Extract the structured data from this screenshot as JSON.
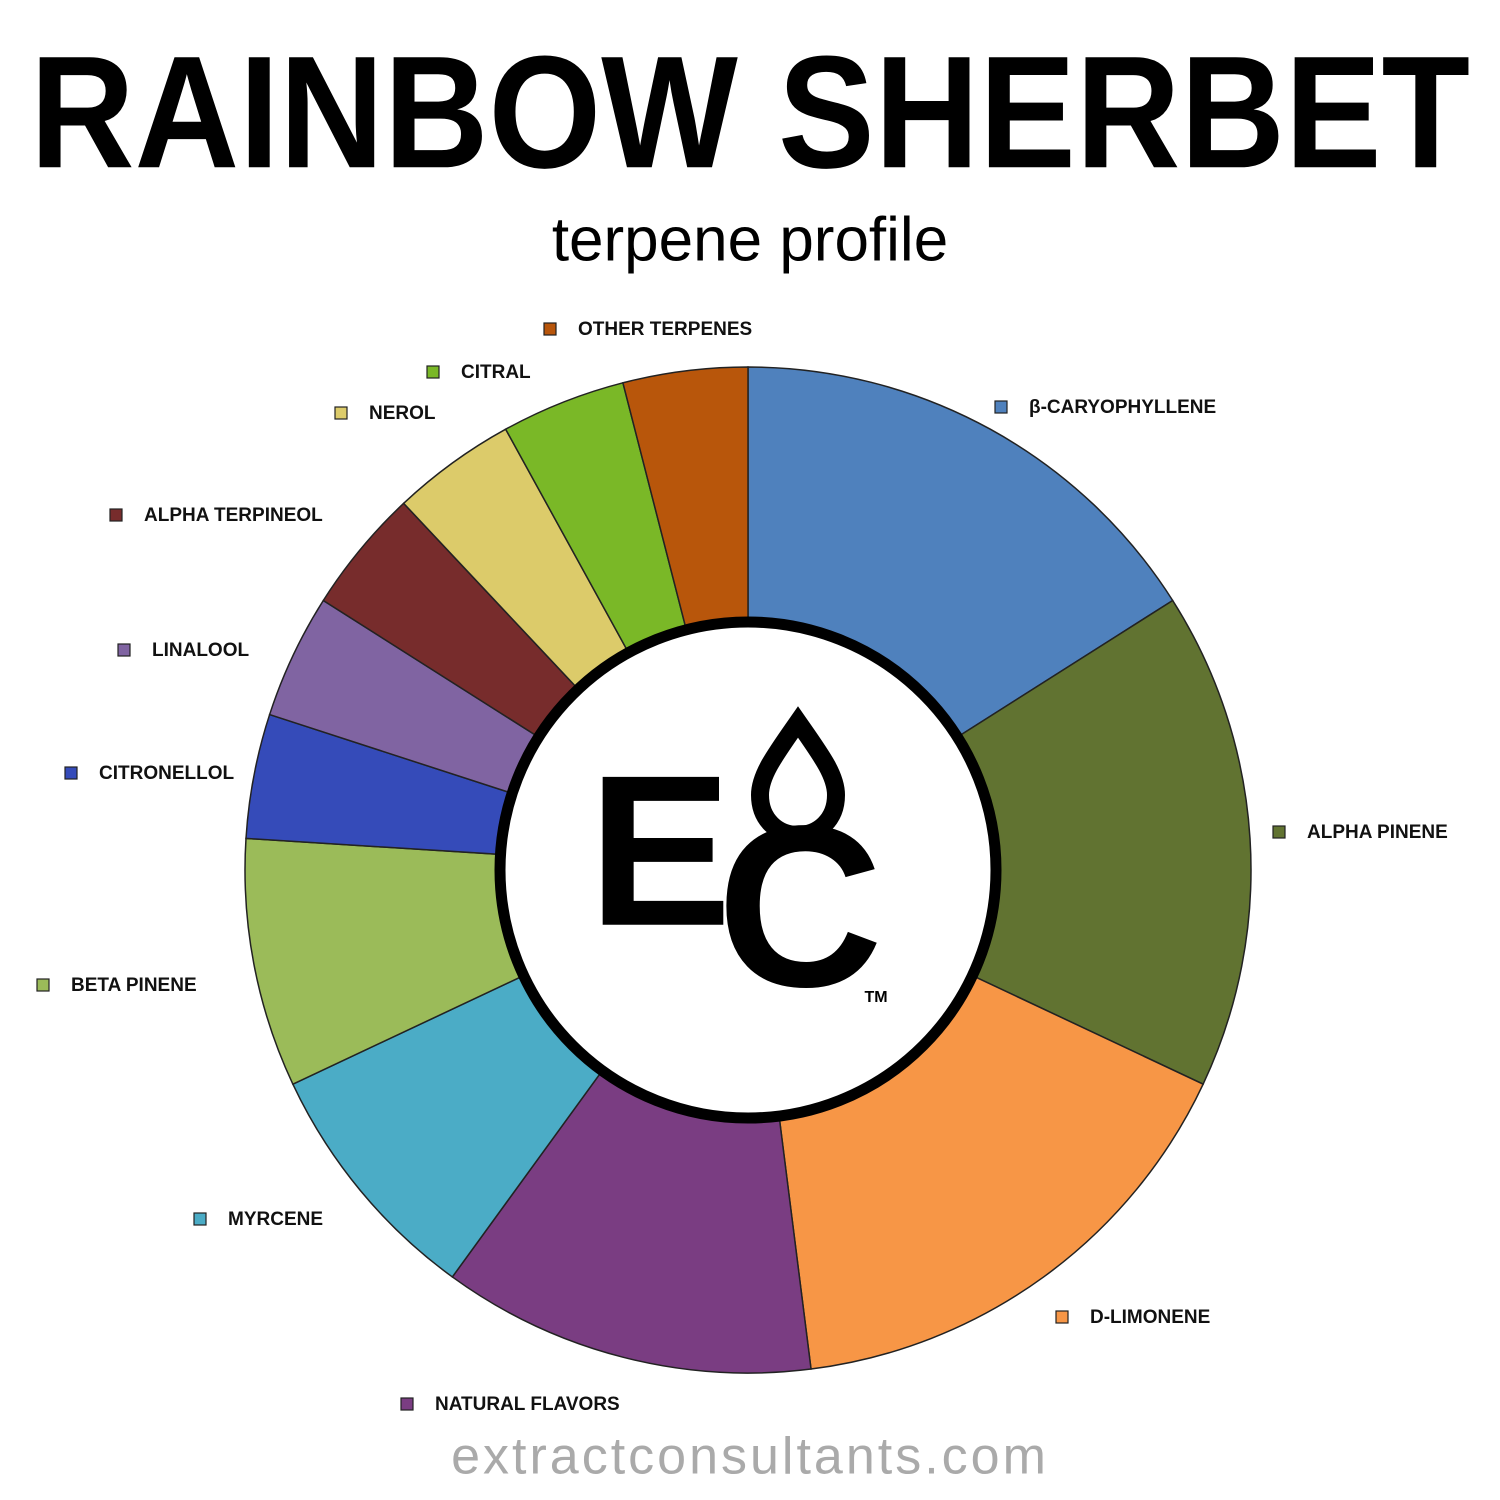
{
  "chart_data": {
    "type": "donut",
    "title": "RAINBOW SHERBET",
    "subtitle": "terpene profile",
    "footer": "extractconsultants.com",
    "logo": {
      "letters": [
        "E",
        "C"
      ],
      "trademark": "TM"
    },
    "categories": [
      "β-CARYOPHYLLENE",
      "ALPHA PINENE",
      "D-LIMONENE",
      "NATURAL FLAVORS",
      "MYRCENE",
      "BETA PINENE",
      "CITRONELLOL",
      "LINALOOL",
      "ALPHA TERPINEOL",
      "NEROL",
      "CITRAL",
      "OTHER TERPENES"
    ],
    "values": [
      16,
      16,
      16,
      12,
      8,
      8,
      4,
      4,
      4,
      4,
      4,
      4
    ],
    "colors": [
      "#4f81bd",
      "#617331",
      "#f79646",
      "#7a3d82",
      "#4bacc6",
      "#9bbb59",
      "#354bb9",
      "#8064a2",
      "#772c2c",
      "#dccb6a",
      "#7ab827",
      "#b8560b"
    ]
  }
}
